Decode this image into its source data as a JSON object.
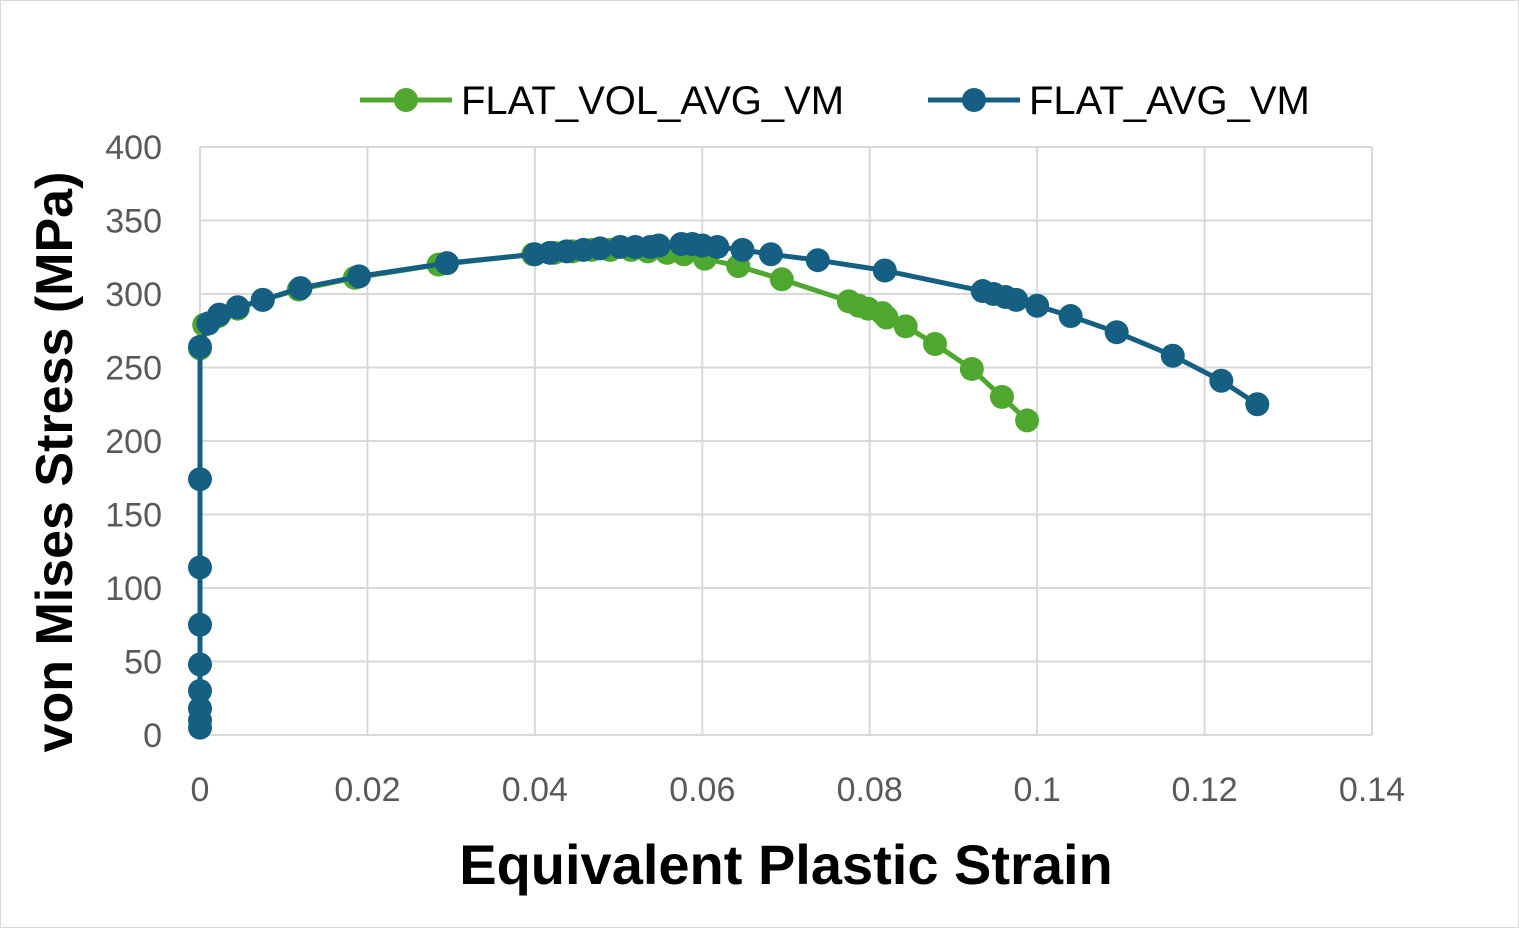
{
  "chart_data": {
    "type": "scatter",
    "title": "",
    "xlabel": "Equivalent Plastic Strain",
    "ylabel": "von Mises Stress (MPa)",
    "xlim": [
      0,
      0.14
    ],
    "ylim": [
      0,
      400
    ],
    "xticks": [
      "0",
      "0.02",
      "0.04",
      "0.06",
      "0.08",
      "0.1",
      "0.12",
      "0.14"
    ],
    "yticks": [
      "0",
      "50",
      "100",
      "150",
      "200",
      "250",
      "300",
      "350",
      "400"
    ],
    "grid": true,
    "legend_position": "top",
    "series": [
      {
        "name": "FLAT_VOL_AVG_VM",
        "color": "#4ea72e",
        "marker": "circle",
        "line": true,
        "points": [
          [
            0,
            263
          ],
          [
            0.0005,
            279
          ],
          [
            0.0022,
            285
          ],
          [
            0.0045,
            290
          ],
          [
            0.0075,
            296
          ],
          [
            0.0118,
            303
          ],
          [
            0.0185,
            311
          ],
          [
            0.0285,
            320
          ],
          [
            0.0398,
            327
          ],
          [
            0.0423,
            328
          ],
          [
            0.0445,
            329
          ],
          [
            0.0468,
            330
          ],
          [
            0.049,
            330
          ],
          [
            0.0515,
            330
          ],
          [
            0.0535,
            329
          ],
          [
            0.0558,
            328
          ],
          [
            0.0578,
            327
          ],
          [
            0.0603,
            324
          ],
          [
            0.0643,
            319
          ],
          [
            0.0695,
            310
          ],
          [
            0.0775,
            295
          ],
          [
            0.0787,
            292
          ],
          [
            0.0798,
            290
          ],
          [
            0.0815,
            287
          ],
          [
            0.082,
            284
          ],
          [
            0.0843,
            278
          ],
          [
            0.0878,
            266
          ],
          [
            0.0922,
            249
          ],
          [
            0.0958,
            230
          ],
          [
            0.0988,
            214
          ]
        ]
      },
      {
        "name": "FLAT_AVG_VM",
        "color": "#156082",
        "marker": "circle",
        "line": true,
        "points": [
          [
            0,
            5
          ],
          [
            0,
            10
          ],
          [
            0,
            18
          ],
          [
            0,
            30
          ],
          [
            0,
            48
          ],
          [
            0,
            75
          ],
          [
            0,
            114
          ],
          [
            0,
            174
          ],
          [
            0,
            264
          ],
          [
            0.001,
            280
          ],
          [
            0.0023,
            286
          ],
          [
            0.0045,
            291
          ],
          [
            0.0075,
            296
          ],
          [
            0.012,
            304
          ],
          [
            0.019,
            312
          ],
          [
            0.0295,
            321
          ],
          [
            0.04,
            327
          ],
          [
            0.0418,
            328
          ],
          [
            0.0438,
            329
          ],
          [
            0.0458,
            330
          ],
          [
            0.0478,
            331
          ],
          [
            0.0502,
            332
          ],
          [
            0.052,
            332
          ],
          [
            0.0538,
            332
          ],
          [
            0.0548,
            333
          ],
          [
            0.0575,
            334
          ],
          [
            0.0588,
            334
          ],
          [
            0.06,
            333
          ],
          [
            0.0618,
            332
          ],
          [
            0.0648,
            330
          ],
          [
            0.0682,
            327
          ],
          [
            0.0738,
            323
          ],
          [
            0.0818,
            316
          ],
          [
            0.0935,
            302
          ],
          [
            0.0948,
            300
          ],
          [
            0.0962,
            298
          ],
          [
            0.0975,
            296
          ],
          [
            0.1,
            292
          ],
          [
            0.104,
            285
          ],
          [
            0.1095,
            274
          ],
          [
            0.1162,
            258
          ],
          [
            0.122,
            241
          ],
          [
            0.1263,
            225
          ]
        ]
      }
    ]
  }
}
